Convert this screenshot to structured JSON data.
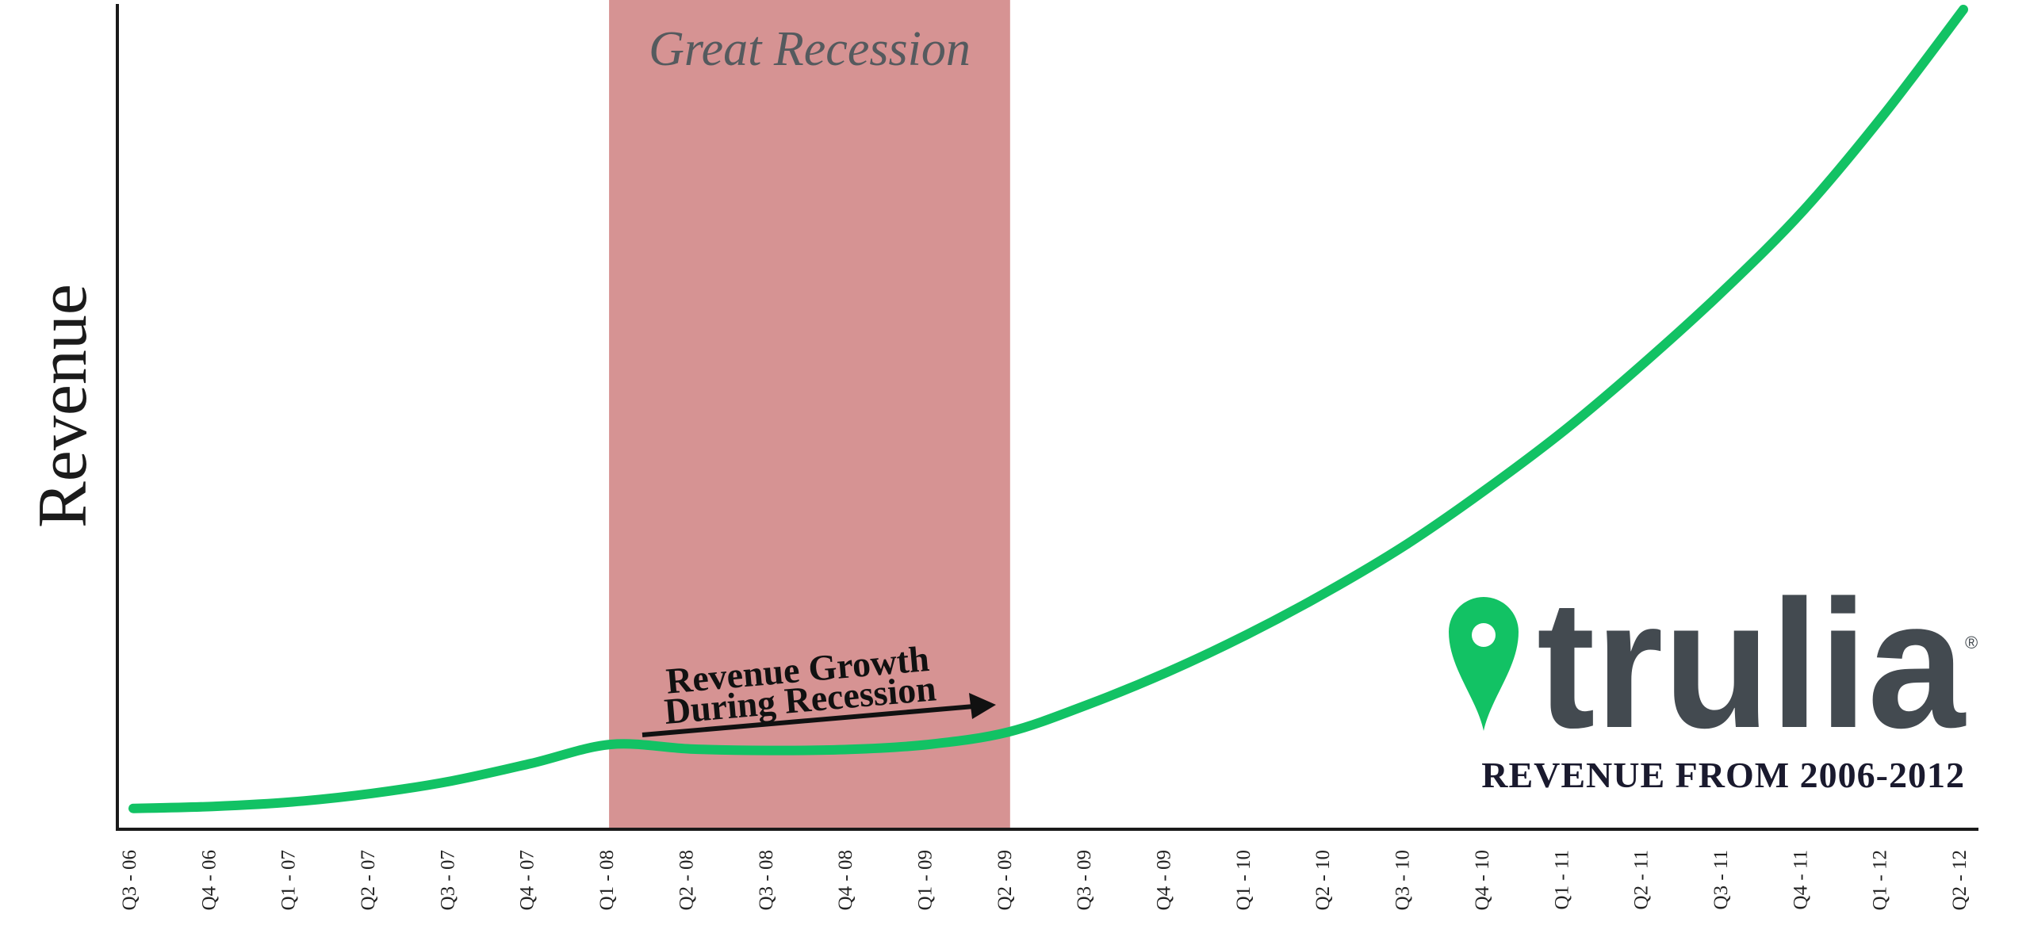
{
  "chart_data": {
    "type": "line",
    "ylabel": "Revenue",
    "xlabel": "",
    "categories": [
      "Q3 - 06",
      "Q4 - 06",
      "Q1 - 07",
      "Q2 - 07",
      "Q3 - 07",
      "Q4 - 07",
      "Q1 - 08",
      "Q2 - 08",
      "Q3 - 08",
      "Q4 - 08",
      "Q1 - 09",
      "Q2 - 09",
      "Q3 - 09",
      "Q4 - 09",
      "Q1 - 10",
      "Q2 - 10",
      "Q3 - 10",
      "Q4 - 10",
      "Q1 - 11",
      "Q2 - 11",
      "Q3 - 11",
      "Q4 - 11",
      "Q1 - 12",
      "Q2 - 12"
    ],
    "series": [
      {
        "name": "",
        "values": [
          0.2,
          0.6,
          1.5,
          3.2,
          5.7,
          9.2,
          13.0,
          12.1,
          11.8,
          12.0,
          13.0,
          15.5,
          21.0,
          27.5,
          35.0,
          43.5,
          53.0,
          64.0,
          76.0,
          89.5,
          104.0,
          120.0,
          139.0,
          160.0
        ]
      }
    ],
    "ylim": [
      0,
      160
    ],
    "y_tick_labels_shown": false,
    "grid": false,
    "legend": "none",
    "shaded_region": {
      "label": "Great Recession",
      "from": "Q1 - 08",
      "to": "Q2 - 09"
    },
    "annotation": {
      "lines": [
        "Revenue Growth",
        "During Recession"
      ],
      "arrow": true
    },
    "colors": {
      "line": "#12c264",
      "shade": "#d69393",
      "axis": "#1a1a1a",
      "brand_dark": "#434a50",
      "brand_green": "#12c264"
    }
  },
  "brand": {
    "logo_text": "trulia",
    "registered_mark": "®",
    "subtitle": "REVENUE FROM 2006-2012",
    "icon": "map-pin-icon"
  }
}
